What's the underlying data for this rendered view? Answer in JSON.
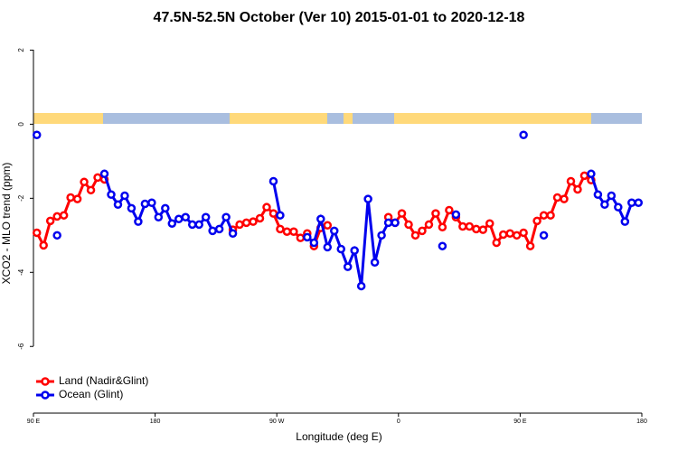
{
  "chart_data": {
    "type": "line",
    "title": "47.5N-52.5N October (Ver 10)   2015-01-01 to 2020-12-18",
    "x_label": "Longitude (deg E)",
    "y_label": "XCO2 - MLO trend (ppm)",
    "xlim": [
      90,
      540
    ],
    "xticks": [
      {
        "value": 90,
        "label": "90 E"
      },
      {
        "value": 180,
        "label": "180"
      },
      {
        "value": 270,
        "label": "90 W"
      },
      {
        "value": 360,
        "label": "0"
      },
      {
        "value": 450,
        "label": "90 E"
      },
      {
        "value": 540,
        "label": "180"
      }
    ],
    "ylim": [
      -7.8,
      2.45
    ],
    "yticks": [
      2,
      0,
      -2,
      -4,
      -6
    ],
    "legend": "bottom-left",
    "x": [
      92.5,
      97.5,
      102.5,
      107.5,
      112.5,
      117.5,
      122.5,
      127.5,
      132.5,
      137.5,
      142.5,
      147.5,
      152.5,
      157.5,
      162.5,
      167.5,
      172.5,
      177.5,
      182.5,
      187.5,
      192.5,
      197.5,
      202.5,
      207.5,
      212.5,
      217.5,
      222.5,
      227.5,
      232.5,
      237.5,
      242.5,
      247.5,
      252.5,
      257.5,
      262.5,
      267.5,
      272.5,
      277.5,
      282.5,
      287.5,
      292.5,
      297.5,
      302.5,
      307.5,
      312.5,
      317.5,
      322.5,
      327.5,
      332.5,
      337.5,
      342.5,
      347.5,
      352.5,
      357.5,
      362.5,
      367.5,
      372.5,
      377.5,
      382.5,
      387.5,
      392.5,
      397.5,
      402.5,
      407.5,
      412.5,
      417.5,
      422.5,
      427.5,
      432.5,
      437.5,
      442.5,
      447.5,
      452.5,
      457.5,
      462.5,
      467.5,
      472.5,
      477.5,
      482.5,
      487.5,
      492.5,
      497.5,
      502.5,
      507.5,
      512.5,
      517.5,
      522.5,
      527.5,
      532.5,
      537.5
    ],
    "series": [
      {
        "name": "Land (Nadir&Glint)",
        "color": "#ff0000",
        "values": [
          -2.93,
          -3.27,
          -2.61,
          -2.49,
          -2.46,
          -1.98,
          -2.02,
          -1.56,
          -1.78,
          -1.44,
          -1.49,
          null,
          null,
          null,
          null,
          null,
          null,
          null,
          null,
          null,
          null,
          null,
          null,
          null,
          null,
          null,
          null,
          null,
          null,
          -2.85,
          -2.71,
          -2.66,
          -2.63,
          -2.54,
          -2.24,
          -2.41,
          -2.83,
          -2.9,
          -2.9,
          -3.07,
          -2.95,
          -3.29,
          -2.8,
          -2.73,
          null,
          null,
          null,
          null,
          null,
          null,
          null,
          null,
          -2.51,
          -2.66,
          -2.41,
          -2.71,
          -3.0,
          -2.88,
          -2.71,
          -2.41,
          -2.78,
          -2.32,
          -2.51,
          -2.76,
          -2.76,
          -2.83,
          -2.85,
          -2.68,
          -3.2,
          -2.98,
          -2.95,
          -3.0,
          -2.93,
          -3.29,
          -2.61,
          -2.46,
          -2.46,
          -1.98,
          -2.02,
          -1.54,
          -1.76,
          -1.39,
          -1.51,
          null,
          null,
          null,
          null,
          null,
          null,
          null
        ]
      },
      {
        "name": "Ocean (Glint)",
        "color": "#0000ee",
        "values": [
          -0.29,
          null,
          null,
          -3.0,
          null,
          null,
          null,
          null,
          null,
          null,
          -1.34,
          -1.9,
          -2.17,
          -1.93,
          -2.27,
          -2.63,
          -2.15,
          -2.12,
          -2.51,
          -2.27,
          -2.68,
          -2.56,
          -2.51,
          -2.71,
          -2.71,
          -2.51,
          -2.88,
          -2.83,
          -2.51,
          -2.95,
          null,
          null,
          null,
          null,
          null,
          -1.54,
          -2.46,
          null,
          null,
          null,
          -3.05,
          -3.2,
          -2.56,
          -3.32,
          -2.88,
          -3.37,
          -3.85,
          -3.41,
          -4.37,
          -2.02,
          -3.73,
          -3.0,
          -2.66,
          -2.66,
          null,
          null,
          null,
          null,
          null,
          null,
          -3.29,
          null,
          -2.44,
          null,
          null,
          null,
          null,
          null,
          null,
          null,
          null,
          null,
          -0.29,
          null,
          null,
          -3.0,
          null,
          null,
          null,
          null,
          null,
          null,
          -1.34,
          -1.9,
          -2.17,
          -1.93,
          -2.24,
          -2.63,
          -2.12,
          -2.12
        ]
      }
    ]
  }
}
